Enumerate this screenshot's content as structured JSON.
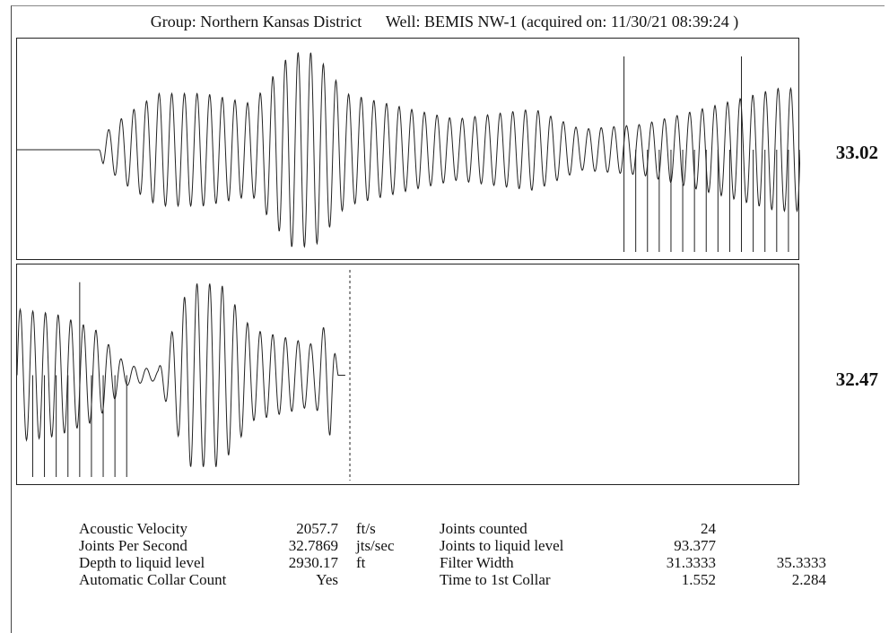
{
  "header": {
    "group_label": "Group: Northern Kansas District",
    "well_label": "Well: BEMIS NW-1 (acquired on: 11/30/21 08:39:24 )"
  },
  "chart_data": {
    "type": "line",
    "title": "",
    "panels": [
      {
        "name": "upper-trace",
        "gain_label": "33.02",
        "amplitude_envelope": [
          [
            0.0,
            0
          ],
          [
            0.105,
            0
          ],
          [
            0.11,
            0.15
          ],
          [
            0.14,
            0.35
          ],
          [
            0.18,
            0.55
          ],
          [
            0.24,
            0.55
          ],
          [
            0.3,
            0.45
          ],
          [
            0.35,
            0.95
          ],
          [
            0.38,
            0.95
          ],
          [
            0.42,
            0.55
          ],
          [
            0.5,
            0.4
          ],
          [
            0.56,
            0.3
          ],
          [
            0.66,
            0.4
          ],
          [
            0.72,
            0.2
          ],
          [
            0.8,
            0.25
          ],
          [
            0.9,
            0.45
          ],
          [
            0.97,
            0.6
          ],
          [
            1.0,
            0.6
          ]
        ],
        "collar_marks_rel_x": [
          0.775,
          0.79,
          0.805,
          0.82,
          0.835,
          0.85,
          0.865,
          0.88,
          0.895,
          0.91,
          0.925,
          0.94,
          0.955,
          0.97,
          0.985
        ],
        "tall_marks_rel_x": [
          0.775,
          0.925
        ]
      },
      {
        "name": "lower-trace",
        "gain_label": "32.47",
        "amplitude_envelope": [
          [
            0.0,
            0.65
          ],
          [
            0.05,
            0.6
          ],
          [
            0.1,
            0.45
          ],
          [
            0.14,
            0.1
          ],
          [
            0.18,
            0.05
          ],
          [
            0.22,
            0.9
          ],
          [
            0.26,
            0.9
          ],
          [
            0.3,
            0.45
          ],
          [
            0.38,
            0.3
          ],
          [
            0.4,
            0.6
          ],
          [
            0.41,
            0
          ]
        ],
        "end_x": 0.41,
        "collar_marks_rel_x": [
          0.02,
          0.035,
          0.05,
          0.065,
          0.08,
          0.095,
          0.11,
          0.125,
          0.14
        ],
        "tall_marks_rel_x": [
          0.08
        ],
        "dashed_marker_rel_x": 0.425
      }
    ]
  },
  "stats": {
    "rows": [
      {
        "label": "Acoustic Velocity",
        "value": "2057.7",
        "unit": "ft/s",
        "label2": "Joints counted",
        "value2": "24",
        "value3": ""
      },
      {
        "label": "Joints Per Second",
        "value": "32.7869",
        "unit": "jts/sec",
        "label2": "Joints to liquid level",
        "value2": "93.377",
        "value3": ""
      },
      {
        "label": "Depth to liquid level",
        "value": "2930.17",
        "unit": "ft",
        "label2": "Filter Width",
        "value2": "31.3333",
        "value3": "35.3333"
      },
      {
        "label": "Automatic Collar Count",
        "value": "Yes",
        "unit": "",
        "label2": "Time to 1st Collar",
        "value2": "1.552",
        "value3": "2.284"
      }
    ]
  }
}
